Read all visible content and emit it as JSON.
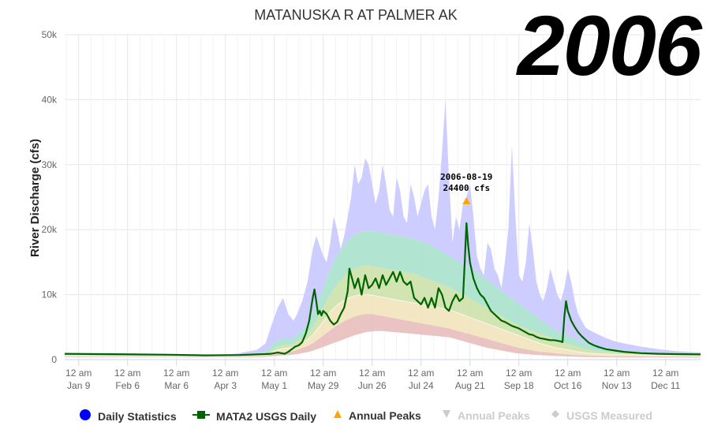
{
  "year_stamp": "2006",
  "chart_data": {
    "type": "area",
    "title": "MATANUSKA R AT PALMER AK",
    "ylabel": "River Discharge (cfs)",
    "xlabel": "",
    "ylim": [
      0,
      50000
    ],
    "grid": true,
    "y_ticks": [
      "0",
      "10k",
      "20k",
      "30k",
      "40k",
      "50k"
    ],
    "y_tick_values": [
      0,
      10000,
      20000,
      30000,
      40000,
      50000
    ],
    "x_ticks": [
      {
        "doy": 8,
        "line1": "12 am",
        "line2": "Jan 9"
      },
      {
        "doy": 36,
        "line1": "12 am",
        "line2": "Feb 6"
      },
      {
        "doy": 64,
        "line1": "12 am",
        "line2": "Mar 6"
      },
      {
        "doy": 92,
        "line1": "12 am",
        "line2": "Apr 3"
      },
      {
        "doy": 120,
        "line1": "12 am",
        "line2": "May 1"
      },
      {
        "doy": 148,
        "line1": "12 am",
        "line2": "May 29"
      },
      {
        "doy": 176,
        "line1": "12 am",
        "line2": "Jun 26"
      },
      {
        "doy": 204,
        "line1": "12 am",
        "line2": "Jul 24"
      },
      {
        "doy": 232,
        "line1": "12 am",
        "line2": "Aug 21"
      },
      {
        "doy": 260,
        "line1": "12 am",
        "line2": "Sep 18"
      },
      {
        "doy": 288,
        "line1": "12 am",
        "line2": "Oct 16"
      },
      {
        "doy": 316,
        "line1": "12 am",
        "line2": "Nov 13"
      },
      {
        "doy": 344,
        "line1": "12 am",
        "line2": "Dec 11"
      }
    ],
    "x_range_doy": [
      0,
      364
    ],
    "bands": {
      "doy": [
        0,
        30,
        60,
        90,
        100,
        110,
        115,
        118,
        120,
        122,
        125,
        128,
        131,
        133,
        136,
        139,
        142,
        144,
        146,
        148,
        150,
        152,
        154,
        156,
        158,
        160,
        162,
        164,
        166,
        168,
        170,
        172,
        174,
        176,
        178,
        180,
        182,
        184,
        186,
        188,
        190,
        192,
        194,
        196,
        198,
        200,
        202,
        204,
        206,
        208,
        210,
        212,
        214,
        216,
        218,
        220,
        222,
        224,
        226,
        228,
        230,
        232,
        234,
        236,
        238,
        240,
        242,
        244,
        246,
        248,
        250,
        252,
        254,
        256,
        258,
        260,
        262,
        264,
        266,
        268,
        270,
        272,
        274,
        276,
        278,
        280,
        282,
        284,
        286,
        288,
        290,
        292,
        294,
        296,
        298,
        300,
        303,
        306,
        310,
        315,
        320,
        330,
        340,
        350,
        364
      ],
      "max": [
        900,
        800,
        700,
        700,
        1000,
        1500,
        2500,
        5000,
        6500,
        8000,
        9500,
        7000,
        6000,
        7000,
        9000,
        12000,
        17000,
        19000,
        17500,
        16000,
        15000,
        18000,
        22000,
        20000,
        17000,
        19000,
        22000,
        25000,
        30000,
        27000,
        28000,
        31000,
        30000,
        27000,
        24000,
        26000,
        30000,
        27000,
        23000,
        22000,
        28000,
        26000,
        22000,
        21000,
        27000,
        25000,
        22000,
        24000,
        26000,
        27000,
        22000,
        20000,
        25000,
        32000,
        40000,
        28000,
        18000,
        22000,
        20000,
        24000,
        25000,
        27000,
        22000,
        16000,
        14000,
        13000,
        18000,
        17000,
        14000,
        13000,
        11000,
        15000,
        20000,
        33000,
        22000,
        13000,
        12000,
        15000,
        21000,
        17000,
        12000,
        10000,
        9000,
        11000,
        14000,
        12000,
        10000,
        9000,
        11000,
        14000,
        12000,
        9000,
        7000,
        6000,
        5000,
        4600,
        4200,
        3800,
        3300,
        2800,
        2500,
        2000,
        1600,
        1300,
        1100
      ],
      "p90": [
        800,
        700,
        600,
        600,
        700,
        900,
        1200,
        2000,
        2600,
        3000,
        3200,
        3200,
        3300,
        3800,
        4500,
        5500,
        7000,
        8300,
        9500,
        11000,
        12500,
        13800,
        15000,
        16000,
        16800,
        17600,
        18300,
        18800,
        19200,
        19500,
        19700,
        19800,
        19800,
        19800,
        19700,
        19600,
        19500,
        19400,
        19300,
        19200,
        19100,
        19000,
        18900,
        18800,
        18700,
        18600,
        18400,
        18200,
        18000,
        17800,
        17500,
        17200,
        16900,
        16600,
        16300,
        16000,
        15600,
        15300,
        15000,
        14700,
        14400,
        14100,
        13800,
        13400,
        13000,
        12600,
        12200,
        11800,
        11400,
        11000,
        10600,
        10200,
        9800,
        9400,
        9000,
        8600,
        8200,
        7800,
        7400,
        7000,
        6600,
        6200,
        5800,
        5400,
        5000,
        4700,
        4400,
        4100,
        3800,
        3600,
        3400,
        3200,
        3000,
        2800,
        2600,
        2400,
        2200,
        2000,
        1800,
        1600,
        1400,
        1200,
        1050,
        950,
        900
      ],
      "p75": [
        700,
        650,
        550,
        550,
        600,
        700,
        850,
        1300,
        1700,
        2000,
        2200,
        2300,
        2400,
        2800,
        3300,
        4000,
        5000,
        6000,
        7000,
        8000,
        9000,
        10000,
        10800,
        11500,
        12200,
        12800,
        13300,
        13700,
        14000,
        14200,
        14400,
        14500,
        14500,
        14400,
        14300,
        14200,
        14100,
        14000,
        13900,
        13800,
        13700,
        13600,
        13500,
        13400,
        13300,
        13200,
        13000,
        12800,
        12600,
        12400,
        12200,
        12000,
        11800,
        11600,
        11400,
        11200,
        10900,
        10600,
        10300,
        10000,
        9700,
        9400,
        9100,
        8800,
        8500,
        8200,
        7900,
        7600,
        7300,
        7000,
        6700,
        6400,
        6100,
        5800,
        5500,
        5200,
        5000,
        4800,
        4600,
        4400,
        4200,
        4000,
        3800,
        3600,
        3400,
        3200,
        3000,
        2800,
        2600,
        2400,
        2250,
        2100,
        1950,
        1800,
        1650,
        1500,
        1400,
        1300,
        1200,
        1100,
        1000,
        900,
        850,
        800,
        750
      ],
      "p50": [
        600,
        550,
        500,
        480,
        500,
        600,
        700,
        1000,
        1300,
        1500,
        1700,
        1800,
        1900,
        2200,
        2600,
        3100,
        3800,
        4500,
        5200,
        5900,
        6600,
        7300,
        7900,
        8400,
        8800,
        9100,
        9400,
        9600,
        9800,
        9900,
        10000,
        10000,
        10000,
        9900,
        9800,
        9700,
        9600,
        9500,
        9400,
        9300,
        9200,
        9100,
        9000,
        8900,
        8800,
        8700,
        8600,
        8500,
        8400,
        8300,
        8200,
        8100,
        8000,
        7900,
        7800,
        7700,
        7500,
        7300,
        7100,
        6900,
        6700,
        6500,
        6300,
        6100,
        5900,
        5700,
        5500,
        5300,
        5100,
        4900,
        4700,
        4500,
        4300,
        4100,
        3900,
        3700,
        3500,
        3300,
        3100,
        2900,
        2700,
        2500,
        2350,
        2200,
        2050,
        1900,
        1800,
        1700,
        1600,
        1500,
        1400,
        1300,
        1200,
        1100,
        1050,
        1000,
        950,
        900,
        850,
        800,
        750,
        700,
        650,
        620,
        600
      ],
      "p25": [
        500,
        450,
        420,
        400,
        420,
        480,
        550,
        700,
        850,
        1000,
        1100,
        1200,
        1300,
        1500,
        1800,
        2100,
        2500,
        2900,
        3300,
        3700,
        4100,
        4500,
        4900,
        5300,
        5600,
        5900,
        6200,
        6400,
        6600,
        6800,
        6900,
        7000,
        7000,
        7000,
        6900,
        6800,
        6700,
        6600,
        6500,
        6400,
        6300,
        6200,
        6100,
        6000,
        5900,
        5800,
        5700,
        5600,
        5500,
        5400,
        5300,
        5200,
        5100,
        5000,
        4900,
        4800,
        4650,
        4500,
        4350,
        4200,
        4050,
        3900,
        3750,
        3600,
        3450,
        3300,
        3150,
        3000,
        2850,
        2700,
        2550,
        2400,
        2250,
        2100,
        1950,
        1800,
        1700,
        1600,
        1500,
        1400,
        1300,
        1200,
        1150,
        1100,
        1050,
        1000,
        950,
        900,
        850,
        800,
        760,
        720,
        690,
        660,
        630,
        600,
        580,
        560,
        540,
        520,
        500,
        480,
        460,
        450,
        440
      ],
      "min": [
        400,
        380,
        350,
        330,
        340,
        380,
        420,
        500,
        550,
        600,
        650,
        700,
        750,
        850,
        1000,
        1150,
        1350,
        1550,
        1750,
        1950,
        2150,
        2350,
        2550,
        2750,
        2950,
        3150,
        3350,
        3550,
        3750,
        3900,
        4050,
        4200,
        4300,
        4350,
        4400,
        4400,
        4400,
        4350,
        4300,
        4250,
        4200,
        4150,
        4100,
        4050,
        4000,
        3950,
        3900,
        3850,
        3800,
        3750,
        3700,
        3650,
        3600,
        3550,
        3500,
        3450,
        3300,
        3150,
        3000,
        2850,
        2700,
        2550,
        2400,
        2250,
        2100,
        1950,
        1800,
        1700,
        1600,
        1500,
        1400,
        1300,
        1200,
        1100,
        1000,
        950,
        900,
        850,
        800,
        760,
        720,
        690,
        660,
        630,
        600,
        580,
        560,
        540,
        520,
        500,
        480,
        460,
        440,
        420,
        400,
        390,
        380,
        370,
        360,
        350,
        340,
        330,
        320,
        310,
        300
      ]
    },
    "series": [
      {
        "name": "MATA2 USGS Daily",
        "color": "#006400",
        "doy": [
          0,
          20,
          40,
          60,
          80,
          100,
          110,
          115,
          118,
          120,
          122,
          124,
          126,
          128,
          130,
          132,
          134,
          136,
          138,
          140,
          142,
          143,
          144,
          145,
          146,
          147,
          148,
          150,
          152,
          154,
          156,
          158,
          160,
          162,
          163,
          164,
          166,
          168,
          170,
          172,
          174,
          176,
          178,
          180,
          182,
          184,
          186,
          188,
          190,
          192,
          194,
          196,
          198,
          200,
          202,
          204,
          206,
          208,
          210,
          212,
          214,
          216,
          218,
          220,
          222,
          224,
          226,
          228,
          229,
          230,
          231,
          232,
          234,
          236,
          238,
          240,
          242,
          244,
          246,
          248,
          250,
          252,
          254,
          256,
          258,
          260,
          262,
          264,
          266,
          268,
          270,
          272,
          274,
          276,
          278,
          280,
          282,
          284,
          285,
          286,
          287,
          288,
          290,
          292,
          294,
          296,
          298,
          300,
          303,
          306,
          310,
          315,
          320,
          330,
          340,
          350,
          364
        ],
        "values": [
          900,
          850,
          800,
          750,
          650,
          700,
          800,
          850,
          900,
          1000,
          1100,
          1000,
          900,
          1200,
          1600,
          2000,
          2200,
          2700,
          4000,
          6000,
          9500,
          10800,
          9000,
          7000,
          7500,
          6800,
          7500,
          7000,
          6000,
          5400,
          5800,
          7000,
          8000,
          10500,
          14000,
          13000,
          11000,
          12500,
          10000,
          13000,
          11000,
          11500,
          12500,
          11000,
          13000,
          11500,
          12500,
          13500,
          12000,
          13500,
          12000,
          11500,
          12000,
          9500,
          9000,
          8500,
          9500,
          8000,
          9500,
          8000,
          11000,
          10000,
          8000,
          7500,
          9000,
          10000,
          9000,
          9500,
          15000,
          21000,
          17500,
          15000,
          12500,
          11000,
          10000,
          9500,
          8500,
          7500,
          7000,
          6500,
          6000,
          5800,
          5500,
          5200,
          5000,
          4800,
          4500,
          4200,
          3900,
          3800,
          3500,
          3300,
          3200,
          3100,
          3000,
          3000,
          2900,
          2800,
          2700,
          6500,
          9000,
          7500,
          6000,
          5000,
          4200,
          3600,
          3100,
          2600,
          2200,
          1900,
          1600,
          1400,
          1200,
          1000,
          900,
          850,
          800
        ]
      },
      {
        "name": "Annual Peaks",
        "color": "#FFA500",
        "points": [
          {
            "doy": 230,
            "value": 24400,
            "date": "2006-08-19",
            "label": "24400 cfs"
          }
        ]
      }
    ],
    "legend_position": "bottom",
    "legend": [
      {
        "key": "daily-statistics",
        "label": "Daily Statistics",
        "symbol": "circle",
        "color": "#0000ff",
        "enabled": true
      },
      {
        "key": "mata2-usgs-daily",
        "label": "MATA2 USGS Daily",
        "symbol": "line-square",
        "color": "#006400",
        "enabled": true
      },
      {
        "key": "annual-peaks",
        "label": "Annual Peaks",
        "symbol": "triangle-up",
        "color": "#FFA500",
        "enabled": true
      },
      {
        "key": "annual-peaks-2",
        "label": "Annual Peaks",
        "symbol": "triangle-down",
        "color": "#cccccc",
        "enabled": false
      },
      {
        "key": "usgs-measured",
        "label": "USGS Measured",
        "symbol": "diamond",
        "color": "#cccccc",
        "enabled": false
      }
    ],
    "band_colors": {
      "outer": "#c8c8ff",
      "upper_mid": "#a8e2cc",
      "inner_high": "#cde1aa",
      "inner_low": "#f1e3bd",
      "lower": "#e8bcbc"
    }
  }
}
